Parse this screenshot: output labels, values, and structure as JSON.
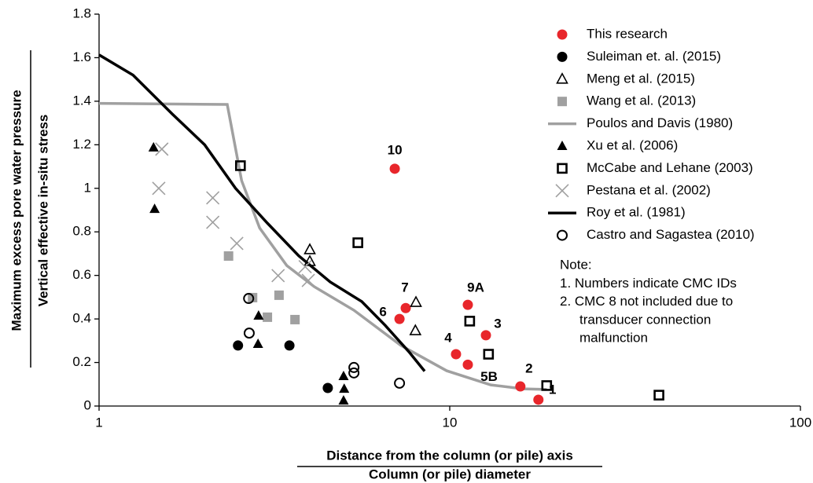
{
  "chart_data": {
    "type": "scatter",
    "xlabel": [
      "Distance from the column (or pile) axis",
      "Column (or pile) diameter"
    ],
    "ylabel": [
      "Maximum excess pore water pressure",
      "Vertical effective in-situ stress"
    ],
    "xscale": "log",
    "xlim": [
      1,
      100
    ],
    "xticks": [
      1,
      10,
      100
    ],
    "ylim": [
      0,
      1.8
    ],
    "yticks": [
      0,
      0.2,
      0.4,
      0.6,
      0.8,
      1,
      1.2,
      1.4,
      1.6,
      1.8
    ],
    "legend": "upper right",
    "series": [
      {
        "name": "This research",
        "color": "#e8262b",
        "marker": "circle",
        "x": [
          6.97,
          7.49,
          7.19,
          11.26,
          12.68,
          10.42,
          11.26,
          15.9,
          17.9
        ],
        "values": [
          1.09,
          0.45,
          0.4,
          0.465,
          0.325,
          0.238,
          0.19,
          0.09,
          0.029
        ],
        "point_labels": [
          "10",
          "7",
          "6",
          "9A",
          "3",
          "4",
          "5B",
          "2",
          "1"
        ]
      },
      {
        "name": "Suleiman et. al. (2015)",
        "color": "#000000",
        "marker": "circle",
        "x": [
          2.49,
          3.49,
          4.49
        ],
        "values": [
          0.278,
          0.278,
          0.083
        ]
      },
      {
        "name": "Meng et al. (2015)",
        "color": "#000000",
        "marker": "triangle-open",
        "x": [
          3.99,
          3.99,
          8.01,
          7.98
        ],
        "values": [
          0.718,
          0.664,
          0.476,
          0.346
        ]
      },
      {
        "name": "Wang et al. (2013)",
        "color": "#a0a0a0",
        "marker": "square",
        "x": [
          2.34,
          2.74,
          3.02,
          3.26,
          3.62
        ],
        "values": [
          0.689,
          0.498,
          0.408,
          0.509,
          0.397
        ]
      },
      {
        "name": "Poulos and Davis (1980)",
        "color": "#a0a0a0",
        "marker": "line",
        "x": [
          1,
          2.32,
          2.55,
          2.87,
          3.43,
          4.11,
          5.33,
          7.26,
          9.8,
          13.1,
          16.2,
          18.9
        ],
        "values": [
          1.39,
          1.385,
          1.035,
          0.818,
          0.645,
          0.548,
          0.44,
          0.278,
          0.162,
          0.097,
          0.079,
          0.076
        ]
      },
      {
        "name": "Xu et al. (2006)",
        "color": "#000000",
        "marker": "triangle",
        "x": [
          1.43,
          1.44,
          2.85,
          2.84,
          4.98,
          5.0,
          4.98
        ],
        "values": [
          1.187,
          0.905,
          0.415,
          0.285,
          0.137,
          0.079,
          0.025
        ]
      },
      {
        "name": "McCabe and Lehane (2003)",
        "color": "#000000",
        "marker": "square-open",
        "x": [
          2.53,
          5.47,
          11.4,
          12.9,
          18.9,
          39.5
        ],
        "values": [
          1.104,
          0.75,
          0.39,
          0.238,
          0.094,
          0.05
        ]
      },
      {
        "name": "Pestana et al. (2002)",
        "color": "#a0a0a0",
        "marker": "x",
        "x": [
          1.51,
          1.48,
          2.11,
          2.11,
          2.47,
          3.24,
          3.95,
          3.87
        ],
        "values": [
          1.18,
          1.0,
          0.956,
          0.844,
          0.747,
          0.599,
          0.577,
          0.64
        ]
      },
      {
        "name": "Roy et al. (1981)",
        "color": "#000000",
        "marker": "line",
        "x": [
          1,
          1.25,
          1.62,
          2.0,
          2.45,
          3.02,
          3.71,
          4.56,
          5.61,
          6.55,
          7.64,
          8.48
        ],
        "values": [
          1.613,
          1.52,
          1.34,
          1.2,
          1.0,
          0.84,
          0.69,
          0.57,
          0.48,
          0.37,
          0.25,
          0.16
        ]
      },
      {
        "name": "Castro and Sagastea (2010)",
        "color": "#000000",
        "marker": "circle-open",
        "x": [
          2.67,
          2.68,
          5.33,
          5.33,
          7.19
        ],
        "values": [
          0.494,
          0.335,
          0.177,
          0.152,
          0.105
        ]
      }
    ],
    "note": {
      "color": "#e8262b",
      "lines": [
        "Note:",
        "1. Numbers indicate CMC IDs",
        "2. CMC 8 not included due to",
        "transducer connection",
        "malfunction"
      ]
    }
  }
}
